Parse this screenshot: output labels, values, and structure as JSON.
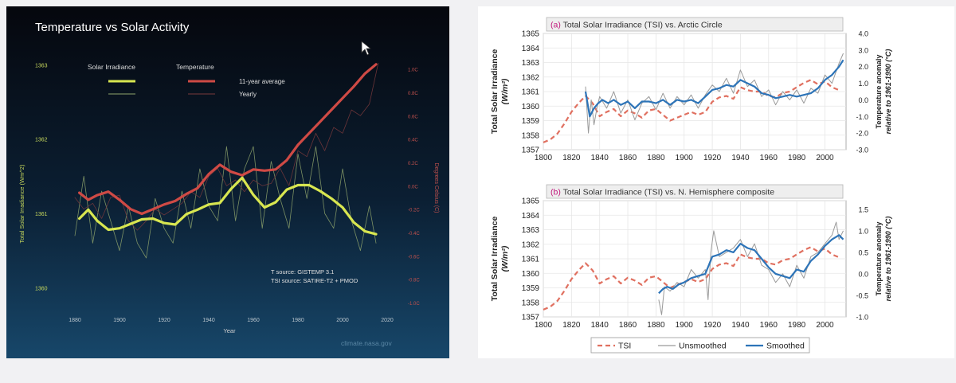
{
  "chart_data": [
    {
      "type": "line",
      "title": "Temperature vs Solar Activity",
      "xlabel": "Year",
      "ylabel_left": "Total Solar Irradiance (Wm^2)",
      "ylabel_right": "Degrees Celsius (C)",
      "xlim": [
        1870,
        2020
      ],
      "x_ticks": [
        "1880",
        "1900",
        "1920",
        "1940",
        "1960",
        "1980",
        "2000",
        "2020"
      ],
      "y_left_lim": [
        1359.8,
        1363.1
      ],
      "y_left_ticks": [
        "1360",
        "1361",
        "1362",
        "1363"
      ],
      "y_right_lim": [
        -1.0,
        1.1
      ],
      "y_right_ticks": [
        "1.0C",
        "0.8C",
        "0.6C",
        "0.4C",
        "0.2C",
        "0.0C",
        "-0.2C",
        "-0.4C",
        "-0.6C",
        "-0.8C",
        "-1.0C"
      ],
      "legend": {
        "groups": [
          "Solar Irradiance",
          "Temperature"
        ],
        "rows": [
          "11-year average",
          "Yearly"
        ],
        "placement": "top-left"
      },
      "source_note": [
        "T source: GISTEMP 3.1",
        "TSI source: SATIRE-T2 + PMOD"
      ],
      "watermark": "climate.nasa.gov",
      "series": [
        {
          "name": "Solar Irradiance 11-year average",
          "axis": "left",
          "color": "#d8e650",
          "x": [
            1882,
            1886,
            1890,
            1895,
            1900,
            1905,
            1910,
            1915,
            1920,
            1925,
            1930,
            1935,
            1940,
            1945,
            1950,
            1955,
            1960,
            1965,
            1970,
            1975,
            1980,
            1985,
            1990,
            1995,
            2000,
            2005,
            2010,
            2015
          ],
          "y": [
            1360.93,
            1361.05,
            1360.9,
            1360.78,
            1360.8,
            1360.86,
            1360.92,
            1360.93,
            1360.87,
            1360.85,
            1360.99,
            1361.05,
            1361.12,
            1361.14,
            1361.33,
            1361.48,
            1361.25,
            1361.08,
            1361.15,
            1361.32,
            1361.38,
            1361.38,
            1361.3,
            1361.2,
            1361.08,
            1360.88,
            1360.76,
            1360.72
          ]
        },
        {
          "name": "Temperature 11-year average",
          "axis": "right",
          "color": "#cf4a45",
          "x": [
            1882,
            1886,
            1890,
            1895,
            1900,
            1905,
            1910,
            1915,
            1920,
            1925,
            1930,
            1935,
            1940,
            1945,
            1950,
            1955,
            1960,
            1965,
            1970,
            1975,
            1980,
            1985,
            1990,
            1995,
            2000,
            2005,
            2010,
            2015
          ],
          "y": [
            -0.06,
            -0.12,
            -0.08,
            -0.05,
            -0.12,
            -0.2,
            -0.24,
            -0.2,
            -0.16,
            -0.13,
            -0.07,
            -0.02,
            0.1,
            0.18,
            0.12,
            0.09,
            0.14,
            0.13,
            0.14,
            0.22,
            0.35,
            0.45,
            0.55,
            0.65,
            0.75,
            0.85,
            0.96,
            1.04
          ]
        },
        {
          "name": "Solar Irradiance Yearly",
          "axis": "left",
          "color": "#8fa46c",
          "x": [
            1880,
            1884,
            1888,
            1892,
            1896,
            1900,
            1904,
            1908,
            1912,
            1916,
            1920,
            1924,
            1928,
            1932,
            1936,
            1940,
            1944,
            1948,
            1952,
            1956,
            1960,
            1964,
            1968,
            1972,
            1976,
            1980,
            1984,
            1988,
            1992,
            1996,
            2000,
            2004,
            2008,
            2012,
            2015
          ],
          "y": [
            1360.7,
            1361.5,
            1360.6,
            1361.3,
            1360.9,
            1360.5,
            1361.1,
            1360.6,
            1360.4,
            1361.2,
            1360.8,
            1360.6,
            1361.3,
            1360.8,
            1361.6,
            1361.1,
            1360.9,
            1361.9,
            1360.9,
            1361.6,
            1361.9,
            1360.8,
            1361.7,
            1361.2,
            1360.8,
            1361.8,
            1361.2,
            1361.9,
            1361.0,
            1360.8,
            1361.6,
            1360.9,
            1360.5,
            1361.1,
            1360.6
          ]
        },
        {
          "name": "Temperature Yearly",
          "axis": "right",
          "color": "#7a3a3c",
          "x": [
            1880,
            1884,
            1888,
            1892,
            1896,
            1900,
            1904,
            1908,
            1912,
            1916,
            1920,
            1924,
            1928,
            1932,
            1936,
            1940,
            1944,
            1948,
            1952,
            1956,
            1960,
            1964,
            1968,
            1972,
            1976,
            1980,
            1984,
            1988,
            1992,
            1996,
            2000,
            2004,
            2008,
            2012,
            2016
          ],
          "y": [
            -0.1,
            -0.2,
            -0.15,
            -0.28,
            -0.1,
            -0.08,
            -0.3,
            -0.38,
            -0.3,
            -0.2,
            -0.25,
            -0.2,
            -0.15,
            -0.05,
            -0.1,
            0.08,
            0.15,
            0.0,
            0.05,
            -0.05,
            0.05,
            0.0,
            0.02,
            0.15,
            0.0,
            0.3,
            0.25,
            0.45,
            0.3,
            0.5,
            0.45,
            0.65,
            0.6,
            0.7,
            1.05
          ]
        }
      ]
    },
    {
      "type": "line",
      "title": "(a) Total Solar Irradiance (TSI) vs. Arctic Circle",
      "panel_letter": "(a)",
      "title_rest": "Total Solar Irradiance (TSI) vs. Arctic Circle",
      "ylabel_left": "Total Solar Irradiance (W/m²)",
      "ylabel_right": "Temperature anomaly relative to 1961-1990 (°C)",
      "xlim": [
        1800,
        2015
      ],
      "x_ticks": [
        "1800",
        "1820",
        "1840",
        "1860",
        "1880",
        "1900",
        "1920",
        "1940",
        "1960",
        "1980",
        "2000"
      ],
      "y_left_lim": [
        1357,
        1365
      ],
      "y_left_ticks": [
        "1357",
        "1358",
        "1359",
        "1360",
        "1361",
        "1362",
        "1363",
        "1364",
        "1365"
      ],
      "y_right_lim": [
        -3.0,
        4.0
      ],
      "y_right_ticks": [
        "-3.0",
        "-2.0",
        "-1.0",
        "0.0",
        "1.0",
        "2.0",
        "3.0",
        "4.0"
      ],
      "series": [
        {
          "name": "TSI",
          "axis": "left",
          "color": "#e07060",
          "x": [
            1800,
            1805,
            1810,
            1815,
            1820,
            1825,
            1830,
            1835,
            1840,
            1845,
            1850,
            1855,
            1860,
            1865,
            1870,
            1875,
            1880,
            1885,
            1890,
            1895,
            1900,
            1905,
            1910,
            1915,
            1920,
            1925,
            1930,
            1935,
            1940,
            1945,
            1950,
            1955,
            1960,
            1965,
            1970,
            1975,
            1980,
            1985,
            1990,
            1995,
            2000,
            2005,
            2010
          ],
          "y": [
            1357.5,
            1357.7,
            1358.1,
            1358.8,
            1359.6,
            1360.2,
            1360.7,
            1360.2,
            1359.3,
            1359.6,
            1359.8,
            1359.3,
            1359.7,
            1359.5,
            1359.2,
            1359.7,
            1359.8,
            1359.4,
            1359.0,
            1359.2,
            1359.4,
            1359.6,
            1359.4,
            1359.6,
            1360.3,
            1360.6,
            1360.7,
            1360.5,
            1361.3,
            1361.1,
            1361.0,
            1361.0,
            1360.7,
            1360.6,
            1360.9,
            1361.0,
            1361.3,
            1361.6,
            1361.8,
            1361.5,
            1361.7,
            1361.3,
            1361.1
          ]
        },
        {
          "name": "Unsmoothed",
          "axis": "right",
          "color": "#9a9a9a",
          "x": [
            1830,
            1832,
            1834,
            1836,
            1838,
            1840,
            1845,
            1850,
            1855,
            1860,
            1865,
            1870,
            1875,
            1880,
            1885,
            1890,
            1895,
            1900,
            1905,
            1910,
            1915,
            1920,
            1925,
            1930,
            1935,
            1940,
            1945,
            1950,
            1955,
            1960,
            1965,
            1970,
            1975,
            1980,
            1985,
            1990,
            1995,
            2000,
            2005,
            2010,
            2013
          ],
          "y": [
            0.8,
            -2.0,
            0.0,
            -1.5,
            -0.5,
            0.2,
            -0.5,
            0.5,
            -0.8,
            0.0,
            -1.2,
            -0.2,
            0.2,
            -0.6,
            0.4,
            -0.5,
            0.2,
            -0.3,
            0.3,
            -0.5,
            0.3,
            0.9,
            0.5,
            1.3,
            0.4,
            1.8,
            0.8,
            1.2,
            0.2,
            0.6,
            -0.3,
            0.5,
            0.0,
            0.6,
            -0.2,
            0.7,
            0.4,
            1.5,
            1.0,
            2.2,
            2.8
          ]
        },
        {
          "name": "Smoothed",
          "axis": "right",
          "color": "#2d74b8",
          "x": [
            1830,
            1833,
            1836,
            1839,
            1842,
            1846,
            1850,
            1855,
            1860,
            1865,
            1870,
            1875,
            1880,
            1885,
            1890,
            1895,
            1900,
            1905,
            1910,
            1915,
            1920,
            1925,
            1930,
            1935,
            1940,
            1945,
            1950,
            1955,
            1960,
            1965,
            1970,
            1975,
            1980,
            1985,
            1990,
            1995,
            2000,
            2005,
            2010,
            2013
          ],
          "y": [
            0.5,
            -1.0,
            -0.5,
            -0.2,
            0.0,
            -0.2,
            0.0,
            -0.3,
            -0.1,
            -0.5,
            -0.1,
            -0.1,
            -0.2,
            0.0,
            -0.3,
            0.0,
            -0.1,
            0.0,
            -0.2,
            0.2,
            0.6,
            0.7,
            0.9,
            0.8,
            1.2,
            1.0,
            0.8,
            0.4,
            0.3,
            0.1,
            0.2,
            0.3,
            0.2,
            0.3,
            0.4,
            0.7,
            1.2,
            1.5,
            2.0,
            2.4
          ]
        }
      ]
    },
    {
      "type": "line",
      "title": "(b) Total Solar Irradiance (TSI) vs. N. Hemisphere composite",
      "panel_letter": "(b)",
      "title_rest": "Total Solar Irradiance (TSI) vs. N. Hemisphere composite",
      "ylabel_left": "Total Solar Irradiance (W/m²)",
      "ylabel_right": "Temperature anomaly relative to 1961-1990 (°C)",
      "xlim": [
        1800,
        2015
      ],
      "x_ticks": [
        "1800",
        "1820",
        "1840",
        "1860",
        "1880",
        "1900",
        "1920",
        "1940",
        "1960",
        "1980",
        "2000"
      ],
      "y_left_lim": [
        1357,
        1365
      ],
      "y_left_ticks": [
        "1357",
        "1358",
        "1359",
        "1360",
        "1361",
        "1362",
        "1363",
        "1364",
        "1365"
      ],
      "y_right_lim": [
        -1.0,
        1.7
      ],
      "y_right_ticks": [
        "-1.0",
        "-0.5",
        "0.0",
        "0.5",
        "1.0",
        "1.5"
      ],
      "legend": {
        "entries": [
          "TSI",
          "Unsmoothed",
          "Smoothed"
        ],
        "placement": "bottom"
      },
      "series": [
        {
          "name": "TSI",
          "axis": "left",
          "color": "#e07060",
          "x": [
            1800,
            1805,
            1810,
            1815,
            1820,
            1825,
            1830,
            1835,
            1840,
            1845,
            1850,
            1855,
            1860,
            1865,
            1870,
            1875,
            1880,
            1885,
            1890,
            1895,
            1900,
            1905,
            1910,
            1915,
            1920,
            1925,
            1930,
            1935,
            1940,
            1945,
            1950,
            1955,
            1960,
            1965,
            1970,
            1975,
            1980,
            1985,
            1990,
            1995,
            2000,
            2005,
            2010
          ],
          "y": [
            1357.5,
            1357.7,
            1358.1,
            1358.8,
            1359.6,
            1360.2,
            1360.7,
            1360.2,
            1359.3,
            1359.6,
            1359.8,
            1359.3,
            1359.7,
            1359.5,
            1359.2,
            1359.7,
            1359.8,
            1359.4,
            1359.0,
            1359.2,
            1359.4,
            1359.6,
            1359.4,
            1359.6,
            1360.3,
            1360.6,
            1360.7,
            1360.5,
            1361.3,
            1361.1,
            1361.0,
            1361.0,
            1360.7,
            1360.6,
            1360.9,
            1361.0,
            1361.3,
            1361.6,
            1361.8,
            1361.5,
            1361.7,
            1361.3,
            1361.1
          ]
        },
        {
          "name": "Unsmoothed",
          "axis": "right",
          "color": "#9a9a9a",
          "x": [
            1882,
            1884,
            1886,
            1890,
            1895,
            1900,
            1905,
            1910,
            1915,
            1917,
            1919,
            1921,
            1925,
            1930,
            1935,
            1940,
            1945,
            1950,
            1955,
            1960,
            1965,
            1970,
            1975,
            1980,
            1985,
            1990,
            1995,
            2000,
            2005,
            2008,
            2010,
            2013
          ],
          "y": [
            -0.6,
            -0.95,
            -0.3,
            -0.4,
            -0.2,
            -0.3,
            0.1,
            -0.1,
            0.1,
            -0.6,
            0.5,
            1.0,
            0.4,
            0.5,
            0.6,
            0.8,
            0.4,
            0.7,
            0.2,
            0.1,
            -0.2,
            0.0,
            -0.3,
            0.2,
            -0.1,
            0.4,
            0.5,
            0.7,
            0.9,
            1.2,
            0.8,
            1.0
          ]
        },
        {
          "name": "Smoothed",
          "axis": "right",
          "color": "#2d74b8",
          "x": [
            1882,
            1885,
            1888,
            1892,
            1896,
            1900,
            1905,
            1910,
            1915,
            1920,
            1925,
            1930,
            1935,
            1940,
            1945,
            1950,
            1955,
            1960,
            1965,
            1970,
            1975,
            1980,
            1985,
            1990,
            1995,
            2000,
            2005,
            2010,
            2013
          ],
          "y": [
            -0.45,
            -0.35,
            -0.3,
            -0.35,
            -0.25,
            -0.2,
            -0.1,
            -0.05,
            0.0,
            0.4,
            0.45,
            0.55,
            0.5,
            0.7,
            0.6,
            0.55,
            0.35,
            0.15,
            0.0,
            -0.05,
            -0.1,
            0.1,
            0.05,
            0.3,
            0.45,
            0.65,
            0.8,
            0.9,
            0.8
          ]
        }
      ]
    }
  ]
}
